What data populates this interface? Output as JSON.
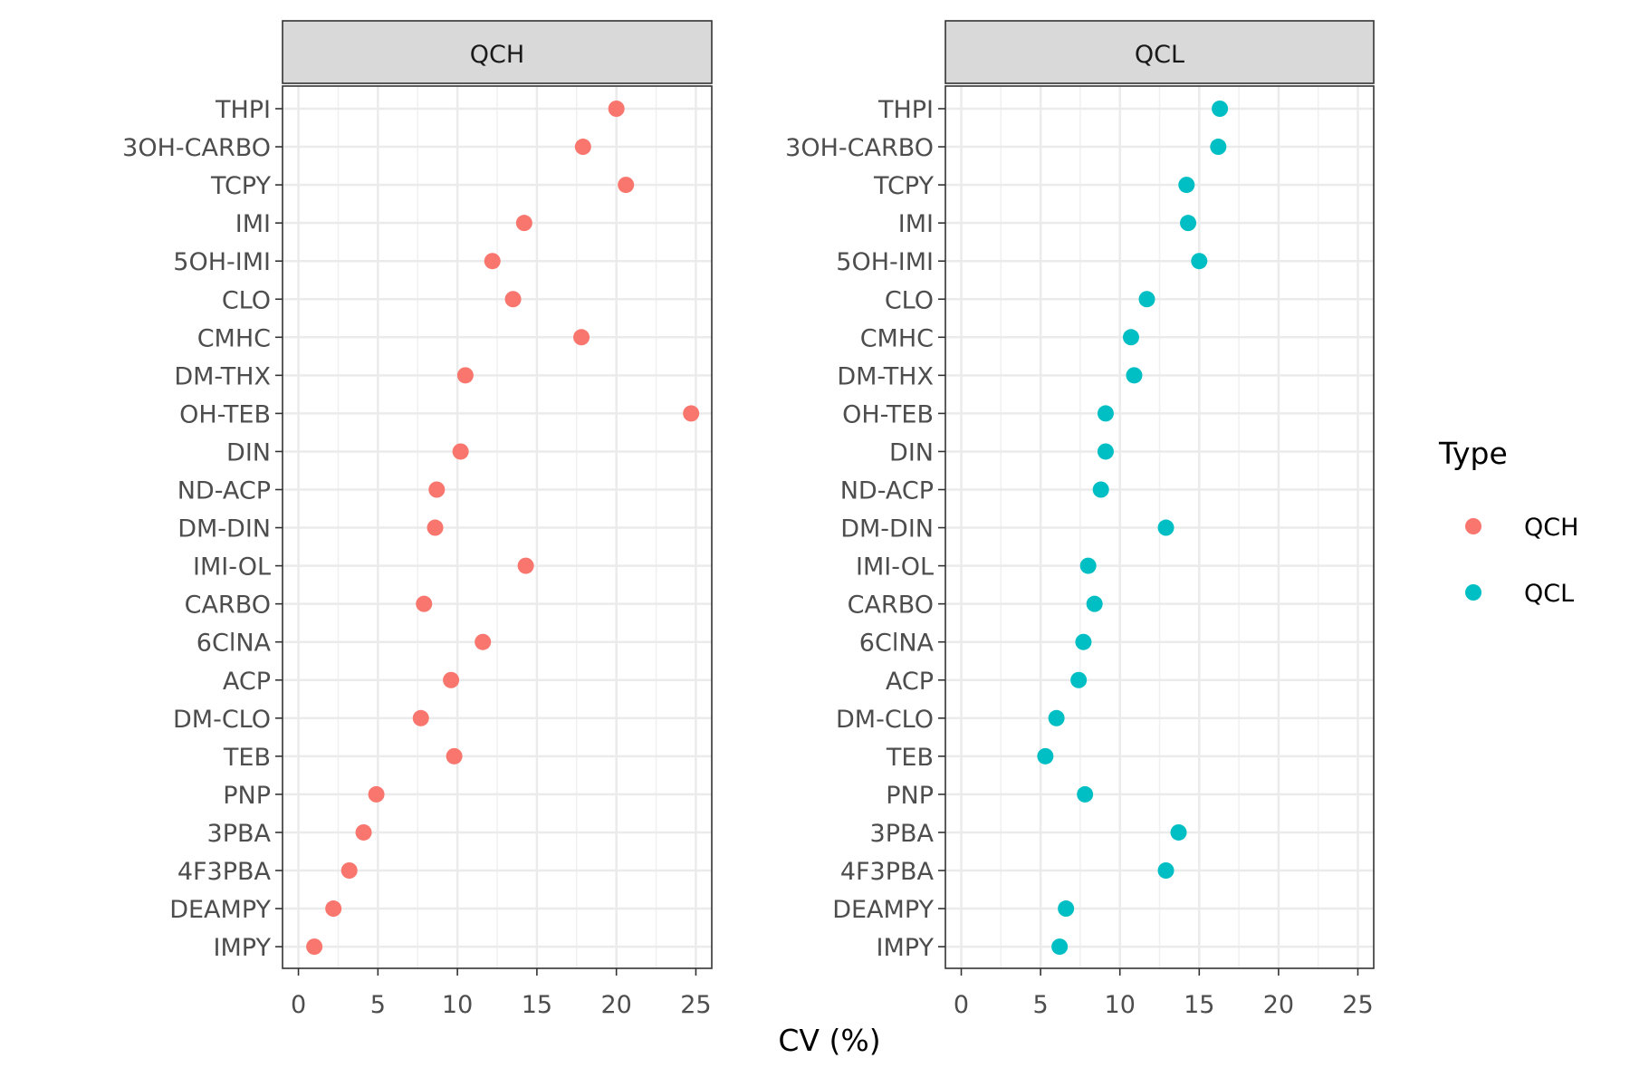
{
  "chart_data": {
    "type": "scatter",
    "xlabel": "CV (%)",
    "xlim": [
      -1,
      26
    ],
    "xticks": [
      0,
      5,
      10,
      15,
      20,
      25
    ],
    "grid": true,
    "legend": {
      "title": "Type",
      "position": "right",
      "entries": [
        {
          "label": "QCH",
          "color": "#F8766D"
        },
        {
          "label": "QCL",
          "color": "#00BFC4"
        }
      ]
    },
    "categories": [
      "THPI",
      "3OH-CARBO",
      "TCPY",
      "IMI",
      "5OH-IMI",
      "CLO",
      "CMHC",
      "DM-THX",
      "OH-TEB",
      "DIN",
      "ND-ACP",
      "DM-DIN",
      "IMI-OL",
      "CARBO",
      "6ClNA",
      "ACP",
      "DM-CLO",
      "TEB",
      "PNP",
      "3PBA",
      "4F3PBA",
      "DEAMPY",
      "IMPY"
    ],
    "panels": [
      {
        "strip": "QCH",
        "color": "#F8766D",
        "values": [
          20.0,
          17.9,
          20.6,
          14.2,
          12.2,
          13.5,
          17.8,
          10.5,
          24.7,
          10.2,
          8.7,
          8.6,
          14.3,
          7.9,
          11.6,
          9.6,
          7.7,
          9.8,
          4.9,
          4.1,
          3.2,
          2.2,
          1.0
        ]
      },
      {
        "strip": "QCL",
        "color": "#00BFC4",
        "values": [
          16.3,
          16.2,
          14.2,
          14.3,
          15.0,
          11.7,
          10.7,
          10.9,
          9.1,
          9.1,
          8.8,
          12.9,
          8.0,
          8.4,
          7.7,
          7.4,
          6.0,
          5.3,
          7.8,
          13.7,
          12.9,
          6.6,
          6.2
        ]
      }
    ]
  }
}
